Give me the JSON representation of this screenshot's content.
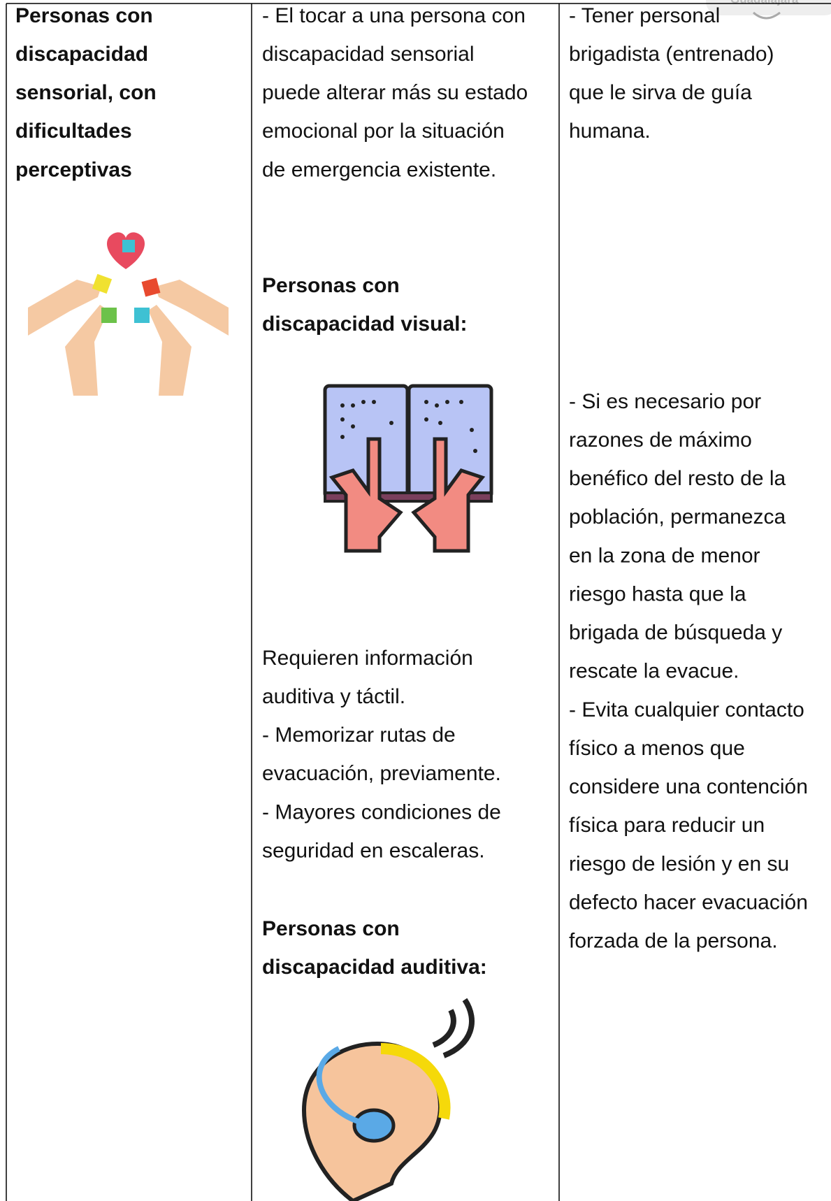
{
  "watermark": "Guadalajara",
  "table": {
    "rows": [
      [
        {
          "blocks": [
            {
              "bold": true,
              "lines": [
                "Personas con",
                "discapacidad",
                "sensorial, con",
                "dificultades",
                "perceptivas"
              ]
            }
          ]
        },
        {
          "blocks": [
            {
              "bold": false,
              "lines": [
                "- El tocar a una persona con",
                "discapacidad sensorial",
                "puede alterar más su estado",
                "emocional por la situación",
                "de emergencia existente."
              ]
            },
            {
              "bold": true,
              "lines": [
                "Personas con",
                "discapacidad visual:"
              ]
            },
            {
              "bold": false,
              "lines": [
                "Requieren información",
                "auditiva y táctil.",
                "- Memorizar rutas de",
                "evacuación, previamente.",
                "- Mayores condiciones de",
                "seguridad en escaleras."
              ]
            },
            {
              "bold": true,
              "lines": [
                "Personas con",
                "discapacidad auditiva:"
              ]
            }
          ]
        },
        {
          "blocks": [
            {
              "bold": false,
              "lines": [
                "- Tener personal",
                "brigadista (entrenado)",
                "que le sirva de guía",
                "humana."
              ]
            },
            {
              "bold": false,
              "lines": [
                "- Si es necesario por",
                "razones de máximo",
                "benéfico del resto de la",
                "población, permanezca",
                "en la zona de menor",
                "riesgo hasta que la",
                "brigada de búsqueda y",
                "rescate la evacue."
              ]
            },
            {
              "bold": false,
              "lines": [
                "- Evita cualquier contacto",
                "físico a menos que",
                "considere una contención",
                "física para reducir un",
                "riesgo de lesión y en su",
                "defecto hacer evacuación",
                "forzada de la persona."
              ]
            }
          ]
        }
      ]
    ]
  }
}
